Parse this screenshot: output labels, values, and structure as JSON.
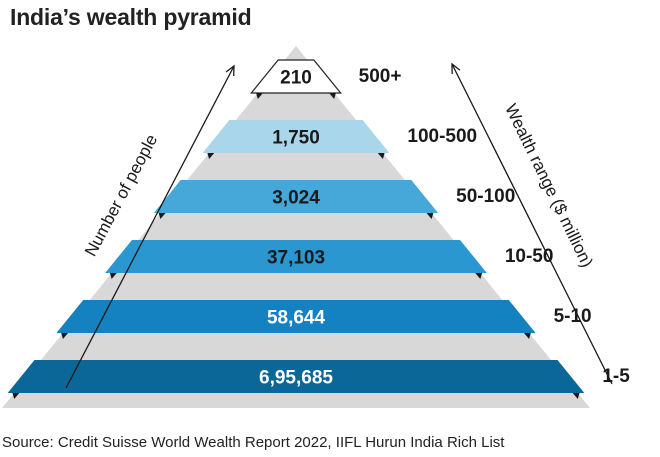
{
  "title": "India’s wealth pyramid",
  "source": "Source: Credit Suisse World Wealth Report 2022, IIFL Hurun India Rich List",
  "chart_data": {
    "type": "pyramid",
    "left_axis_label": "Number of people",
    "right_axis_label": "Wealth range ($ million)",
    "tiers": [
      {
        "range": "500+",
        "people": 210,
        "label": "210",
        "color": "#ffffff"
      },
      {
        "range": "100-500",
        "people": 1750,
        "label": "1,750",
        "color": "#aad6ec"
      },
      {
        "range": "50-100",
        "people": 3024,
        "label": "3,024",
        "color": "#46a7d9"
      },
      {
        "range": "10-50",
        "people": 37103,
        "label": "37,103",
        "color": "#2b97d0"
      },
      {
        "range": "5-10",
        "people": 58644,
        "label": "58,644",
        "color": "#1482c0"
      },
      {
        "range": "1-5",
        "people": 695685,
        "label": "6,95,685",
        "color": "#0b6797"
      }
    ]
  }
}
